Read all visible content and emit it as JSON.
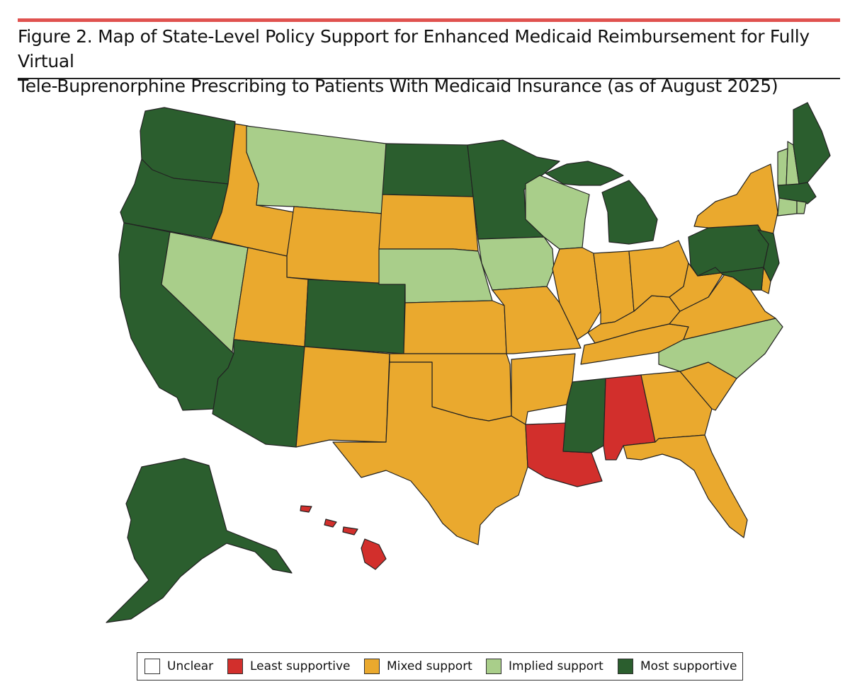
{
  "figure": {
    "title_line1": "Figure 2. Map of State-Level Policy Support for Enhanced Medicaid Reimbursement for Fully Virtual",
    "title_line2": "Tele-Buprenorphine Prescribing to Patients With Medicaid Insurance (as of August 2025)"
  },
  "categories": {
    "unclear": {
      "label": "Unclear",
      "color": "#ffffff"
    },
    "least": {
      "label": "Least supportive",
      "color": "#d22f2c"
    },
    "mixed": {
      "label": "Mixed support",
      "color": "#eaa92e"
    },
    "implied": {
      "label": "Implied support",
      "color": "#a9ce8a"
    },
    "most": {
      "label": "Most supportive",
      "color": "#2b5e2e"
    }
  },
  "legend_order": [
    "unclear",
    "least",
    "mixed",
    "implied",
    "most"
  ],
  "states": {
    "WA": "most",
    "OR": "most",
    "CA": "most",
    "NV": "implied",
    "ID": "mixed",
    "MT": "implied",
    "WY": "mixed",
    "UT": "mixed",
    "AZ": "most",
    "CO": "most",
    "NM": "mixed",
    "ND": "most",
    "SD": "mixed",
    "NE": "implied",
    "KS": "mixed",
    "OK": "mixed",
    "TX": "mixed",
    "MN": "most",
    "IA": "implied",
    "MO": "mixed",
    "AR": "mixed",
    "LA": "least",
    "WI": "implied",
    "IL": "mixed",
    "MS": "most",
    "MI": "most",
    "IN": "mixed",
    "KY": "mixed",
    "TN": "mixed",
    "AL": "least",
    "OH": "mixed",
    "GA": "mixed",
    "FL": "mixed",
    "SC": "mixed",
    "NC": "implied",
    "VA": "mixed",
    "WV": "mixed",
    "PA": "most",
    "NY": "mixed",
    "VT": "implied",
    "NH": "implied",
    "ME": "most",
    "MA": "most",
    "RI": "implied",
    "CT": "implied",
    "NJ": "most",
    "DE": "mixed",
    "MD": "most",
    "AK": "most",
    "HI": "least"
  }
}
